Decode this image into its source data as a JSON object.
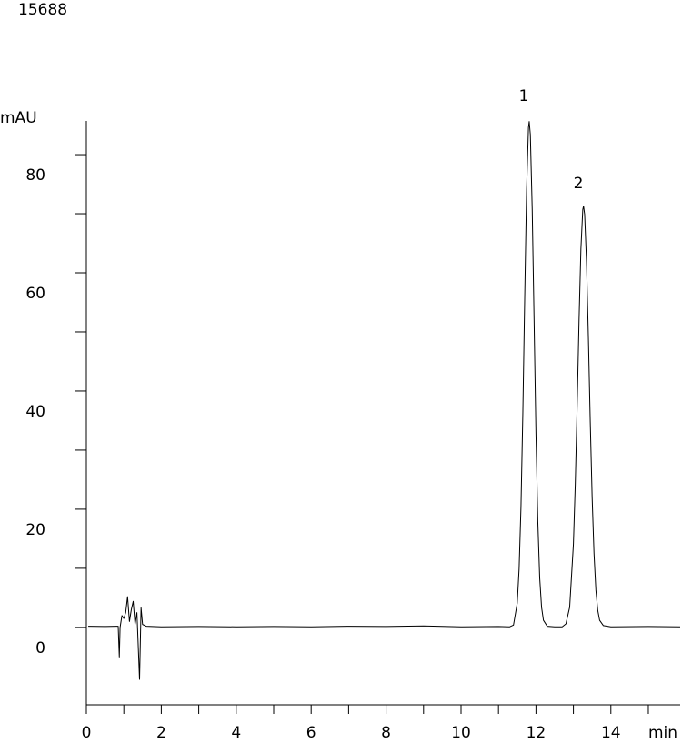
{
  "chart_data": {
    "type": "line",
    "title": "15688",
    "y_label": "mAU",
    "x_label": "min",
    "annotations": [
      {
        "text": "1"
      },
      {
        "text": "2"
      }
    ],
    "color": "#000000",
    "x": [
      0.05,
      0.5,
      0.85,
      0.88,
      0.9,
      0.95,
      1.0,
      1.05,
      1.1,
      1.15,
      1.2,
      1.25,
      1.3,
      1.35,
      1.42,
      1.46,
      1.5,
      1.6,
      2,
      3,
      4,
      5,
      6,
      7,
      8,
      9,
      10,
      11,
      11.3,
      11.4,
      11.5,
      11.55,
      11.6,
      11.65,
      11.7,
      11.75,
      11.8,
      11.82,
      11.85,
      11.9,
      11.95,
      12.0,
      12.05,
      12.1,
      12.15,
      12.2,
      12.3,
      12.5,
      12.7,
      12.8,
      12.9,
      13.0,
      13.05,
      13.1,
      13.15,
      13.2,
      13.25,
      13.27,
      13.3,
      13.35,
      13.4,
      13.45,
      13.5,
      13.55,
      13.6,
      13.65,
      13.7,
      13.8,
      14,
      15,
      15.85
    ],
    "values": [
      0.2,
      0.15,
      0.2,
      -5,
      0,
      2,
      1.5,
      2.5,
      5.2,
      1,
      3,
      4.4,
      0.5,
      2.5,
      -8.8,
      3.3,
      0.5,
      0.2,
      0.1,
      0.15,
      0.1,
      0.15,
      0.1,
      0.2,
      0.15,
      0.25,
      0.1,
      0.15,
      0.1,
      0.4,
      4.1,
      9.9,
      20.4,
      36.4,
      55.9,
      74.1,
      84.6,
      85.6,
      83.4,
      70.8,
      52,
      32.8,
      17.9,
      8.4,
      3.4,
      1.2,
      0.2,
      0.1,
      0.1,
      0.6,
      3.4,
      14.1,
      24.3,
      37.5,
      51.8,
      64,
      70.7,
      71.3,
      69.9,
      61.8,
      49,
      34.7,
      22,
      12.5,
      6.3,
      2.9,
      1.2,
      0.3,
      0.1,
      0.15,
      0.1
    ],
    "xlim": [
      0,
      15.85
    ],
    "ylim": [
      -13.1,
      85.7
    ],
    "xticks": [
      0,
      2,
      4,
      6,
      8,
      10,
      12,
      14
    ],
    "xminor": [
      1,
      3,
      5,
      7,
      9,
      11,
      13,
      15
    ],
    "yticks": [
      0,
      20,
      40,
      60,
      80
    ],
    "yminor": [
      10,
      30,
      50,
      70
    ]
  }
}
